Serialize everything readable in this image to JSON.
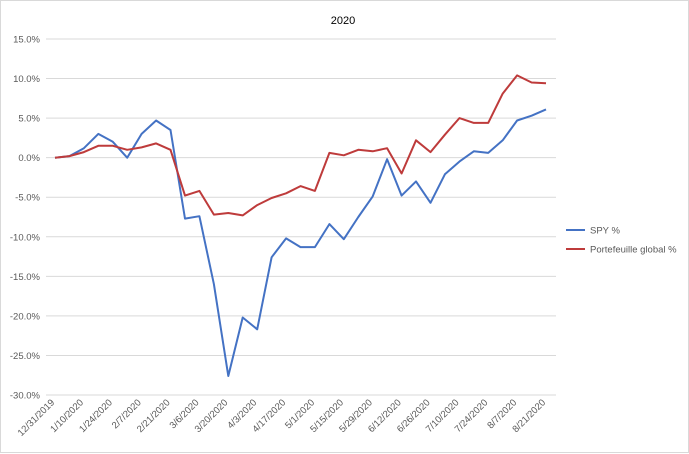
{
  "chart_data": {
    "type": "line",
    "title": "2020",
    "xlabel": "",
    "ylabel": "",
    "ylim": [
      -30,
      15
    ],
    "y_ticks": [
      15,
      10,
      5,
      0,
      -5,
      -10,
      -15,
      -20,
      -25,
      -30
    ],
    "y_tick_labels": [
      "15.0%",
      "10.0%",
      "5.0%",
      "0.0%",
      "-5.0%",
      "-10.0%",
      "-15.0%",
      "-20.0%",
      "-25.0%",
      "-30.0%"
    ],
    "x": [
      "12/31/2019",
      "1/3/2020",
      "1/10/2020",
      "1/17/2020",
      "1/24/2020",
      "1/31/2020",
      "2/7/2020",
      "2/14/2020",
      "2/21/2020",
      "2/28/2020",
      "3/6/2020",
      "3/13/2020",
      "3/20/2020",
      "3/27/2020",
      "4/3/2020",
      "4/10/2020",
      "4/17/2020",
      "4/24/2020",
      "5/1/2020",
      "5/8/2020",
      "5/15/2020",
      "5/22/2020",
      "5/29/2020",
      "6/5/2020",
      "6/12/2020",
      "6/19/2020",
      "6/26/2020",
      "7/3/2020",
      "7/10/2020",
      "7/17/2020",
      "7/24/2020",
      "7/31/2020",
      "8/7/2020",
      "8/14/2020",
      "8/21/2020"
    ],
    "x_tick_labels": [
      "12/31/2019",
      "1/10/2020",
      "1/24/2020",
      "2/7/2020",
      "2/21/2020",
      "3/6/2020",
      "3/20/2020",
      "4/3/2020",
      "4/17/2020",
      "5/1/2020",
      "5/15/2020",
      "5/29/2020",
      "6/12/2020",
      "6/26/2020",
      "7/10/2020",
      "7/24/2020",
      "8/7/2020",
      "8/21/2020"
    ],
    "series": [
      {
        "name": "SPY %",
        "color": "#4472c4",
        "values": [
          0.0,
          0.2,
          1.2,
          3.0,
          2.0,
          0.0,
          3.0,
          4.7,
          3.5,
          -7.7,
          -7.4,
          -16.0,
          -27.6,
          -20.2,
          -21.7,
          -12.6,
          -10.2,
          -11.3,
          -11.3,
          -8.4,
          -10.3,
          -7.5,
          -4.9,
          -0.2,
          -4.8,
          -3.0,
          -5.7,
          -2.1,
          -0.5,
          0.8,
          0.6,
          2.2,
          4.7,
          5.3,
          6.1
        ]
      },
      {
        "name": "Portefeuille global %",
        "color": "#be3b3b",
        "values": [
          0.0,
          0.2,
          0.7,
          1.5,
          1.5,
          1.0,
          1.3,
          1.8,
          1.0,
          -4.8,
          -4.2,
          -7.2,
          -7.0,
          -7.3,
          -6.0,
          -5.1,
          -4.5,
          -3.6,
          -4.2,
          0.6,
          0.3,
          1.0,
          0.8,
          1.2,
          -2.0,
          2.2,
          0.7,
          2.9,
          5.0,
          4.4,
          4.4,
          8.1,
          10.4,
          9.5,
          9.4
        ]
      }
    ],
    "grid": true,
    "legend_position": "right"
  }
}
